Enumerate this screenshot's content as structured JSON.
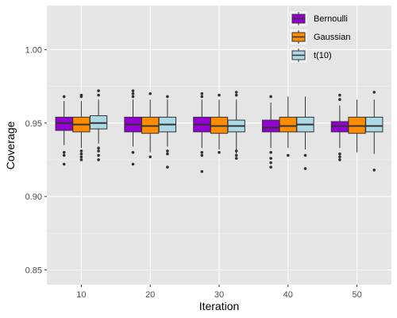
{
  "chart_data": {
    "type": "boxplot",
    "title": "",
    "xlabel": "Iteration",
    "ylabel": "Coverage",
    "ylim": [
      0.84,
      1.03
    ],
    "yticks": [
      "0.85",
      "0.90",
      "0.95",
      "1.00"
    ],
    "yticks_values": [
      0.85,
      0.9,
      0.95,
      1.0
    ],
    "categories": [
      "10",
      "20",
      "30",
      "40",
      "50"
    ],
    "grid": true,
    "background": "#e5e5e5",
    "legend_position": "top-right",
    "series": [
      {
        "name": "Bernoulli",
        "color": "#9400d3",
        "boxes": [
          {
            "min": 0.935,
            "q1": 0.945,
            "median": 0.95,
            "q3": 0.954,
            "max": 0.965,
            "outliers": [
              0.968,
              0.93,
              0.928,
              0.922
            ]
          },
          {
            "min": 0.934,
            "q1": 0.944,
            "median": 0.949,
            "q3": 0.954,
            "max": 0.966,
            "outliers": [
              0.968,
              0.97,
              0.972,
              0.93,
              0.922
            ]
          },
          {
            "min": 0.933,
            "q1": 0.944,
            "median": 0.949,
            "q3": 0.954,
            "max": 0.966,
            "outliers": [
              0.968,
              0.97,
              0.93,
              0.928,
              0.917
            ]
          },
          {
            "min": 0.933,
            "q1": 0.944,
            "median": 0.947,
            "q3": 0.952,
            "max": 0.964,
            "outliers": [
              0.968,
              0.93,
              0.926,
              0.923,
              0.92
            ]
          },
          {
            "min": 0.933,
            "q1": 0.944,
            "median": 0.948,
            "q3": 0.951,
            "max": 0.962,
            "outliers": [
              0.966,
              0.969,
              0.929,
              0.927,
              0.925
            ]
          }
        ]
      },
      {
        "name": "Gaussian",
        "color": "#ff8c00",
        "boxes": [
          {
            "min": 0.933,
            "q1": 0.944,
            "median": 0.949,
            "q3": 0.954,
            "max": 0.965,
            "outliers": [
              0.968,
              0.969,
              0.931,
              0.929,
              0.927,
              0.925
            ]
          },
          {
            "min": 0.93,
            "q1": 0.943,
            "median": 0.948,
            "q3": 0.954,
            "max": 0.966,
            "outliers": [
              0.97,
              0.927
            ]
          },
          {
            "min": 0.932,
            "q1": 0.943,
            "median": 0.948,
            "q3": 0.954,
            "max": 0.966,
            "outliers": [
              0.969,
              0.93
            ]
          },
          {
            "min": 0.933,
            "q1": 0.944,
            "median": 0.948,
            "q3": 0.954,
            "max": 0.968,
            "outliers": [
              0.928
            ]
          },
          {
            "min": 0.93,
            "q1": 0.943,
            "median": 0.948,
            "q3": 0.954,
            "max": 0.966,
            "outliers": []
          }
        ]
      },
      {
        "name": "t(10)",
        "color": "#add8e6",
        "boxes": [
          {
            "min": 0.936,
            "q1": 0.946,
            "median": 0.95,
            "q3": 0.955,
            "max": 0.966,
            "outliers": [
              0.969,
              0.972,
              0.933,
              0.931,
              0.928,
              0.925
            ]
          },
          {
            "min": 0.934,
            "q1": 0.944,
            "median": 0.949,
            "q3": 0.954,
            "max": 0.966,
            "outliers": [
              0.968,
              0.931,
              0.929,
              0.92
            ]
          },
          {
            "min": 0.929,
            "q1": 0.944,
            "median": 0.948,
            "q3": 0.952,
            "max": 0.966,
            "outliers": [
              0.969,
              0.971,
              0.931,
              0.928,
              0.926
            ]
          },
          {
            "min": 0.932,
            "q1": 0.944,
            "median": 0.949,
            "q3": 0.954,
            "max": 0.968,
            "outliers": [
              0.928,
              0.919
            ]
          },
          {
            "min": 0.929,
            "q1": 0.944,
            "median": 0.948,
            "q3": 0.954,
            "max": 0.966,
            "outliers": [
              0.971,
              0.918
            ]
          }
        ]
      }
    ]
  }
}
